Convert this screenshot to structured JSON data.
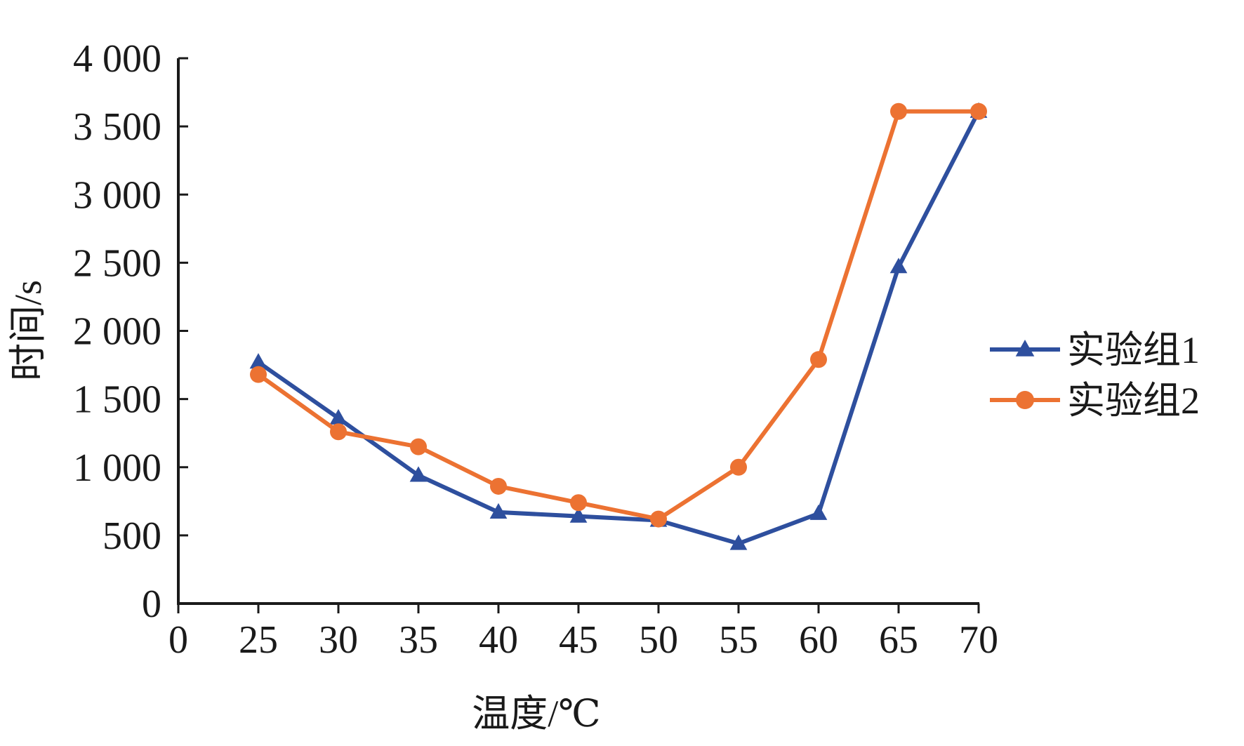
{
  "chart_data": {
    "type": "line",
    "xlabel": "温度/℃",
    "ylabel": "时间/s",
    "xlim": [
      0,
      70
    ],
    "ylim": [
      0,
      4000
    ],
    "x_ticks": [
      "0",
      "25",
      "30",
      "35",
      "40",
      "45",
      "50",
      "55",
      "60",
      "65",
      "70"
    ],
    "y_ticks": [
      "0",
      "500",
      "1 000",
      "1 500",
      "2 000",
      "2 500",
      "3 000",
      "3 500",
      "4 000"
    ],
    "x": [
      25,
      30,
      35,
      40,
      45,
      50,
      55,
      60,
      65,
      70
    ],
    "series": [
      {
        "name": "实验组1",
        "color": "#2e4f9e",
        "marker": "triangle",
        "values": [
          1770,
          1360,
          940,
          670,
          640,
          610,
          440,
          660,
          2470,
          3610
        ]
      },
      {
        "name": "实验组2",
        "color": "#ec7232",
        "marker": "circle",
        "values": [
          1680,
          1260,
          1150,
          860,
          740,
          620,
          1000,
          1790,
          3610,
          3610
        ]
      }
    ],
    "grid": false,
    "legend_position": "right"
  }
}
